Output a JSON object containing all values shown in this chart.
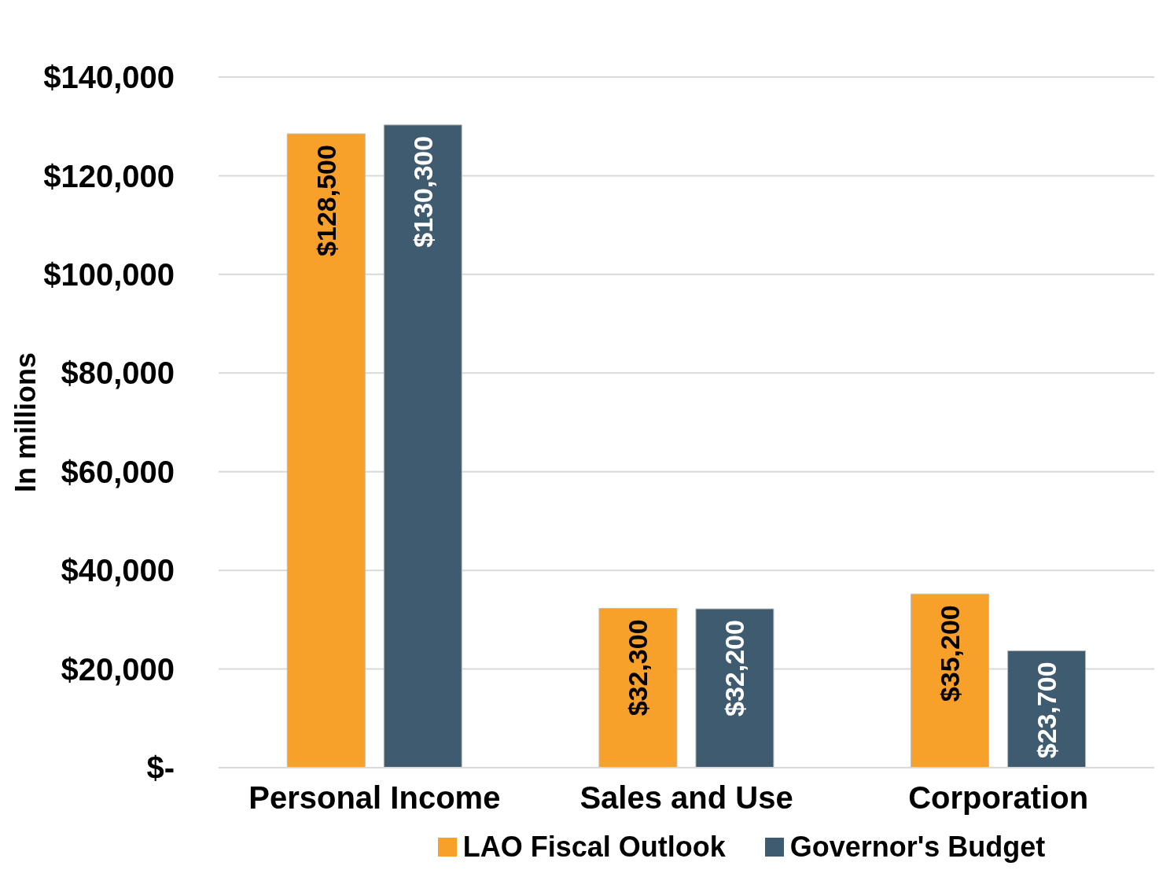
{
  "chart_data": {
    "type": "bar",
    "ylabel": "In millions",
    "categories": [
      "Personal Income",
      "Sales and Use",
      "Corporation"
    ],
    "series": [
      {
        "name": "LAO Fiscal Outlook",
        "color": "#f7a12a",
        "values": [
          128500,
          32300,
          35200
        ],
        "value_labels": [
          "$128,500",
          "$32,300",
          "$35,200"
        ]
      },
      {
        "name": "Governor's Budget",
        "color": "#3f5b70",
        "values": [
          130300,
          32200,
          23700
        ],
        "value_labels": [
          "$130,300",
          "$32,200",
          "$23,700"
        ]
      }
    ],
    "ylim": [
      0,
      140000
    ],
    "yticks": [
      {
        "value": 0,
        "label": "$-"
      },
      {
        "value": 20000,
        "label": "$20,000"
      },
      {
        "value": 40000,
        "label": "$40,000"
      },
      {
        "value": 60000,
        "label": "$60,000"
      },
      {
        "value": 80000,
        "label": "$80,000"
      },
      {
        "value": 100000,
        "label": "$100,000"
      },
      {
        "value": 120000,
        "label": "$120,000"
      },
      {
        "value": 140000,
        "label": "$140,000"
      }
    ],
    "grid": "y",
    "legend": "bottom"
  }
}
